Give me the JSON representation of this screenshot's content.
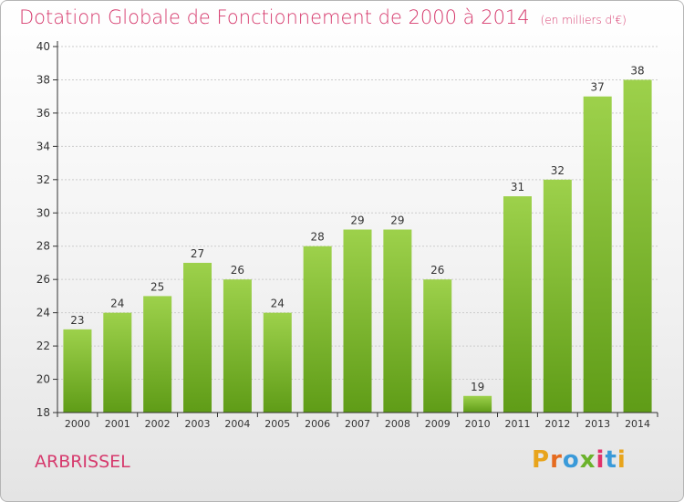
{
  "header": {
    "title": "Dotation Globale de Fonctionnement de 2000 à 2014",
    "subtitle": "(en milliers d'€)"
  },
  "footer": {
    "place": "ARBRISSEL",
    "logo": "Proxiti"
  },
  "colors": {
    "title": "#d63a6d",
    "bar_light": "#9dd14b",
    "bar_dark": "#5f9c17",
    "axis": "#333333",
    "grid": "#cccccc"
  },
  "chart_data": {
    "type": "bar",
    "categories": [
      "2000",
      "2001",
      "2002",
      "2003",
      "2004",
      "2005",
      "2006",
      "2007",
      "2008",
      "2009",
      "2010",
      "2011",
      "2012",
      "2013",
      "2014"
    ],
    "values": [
      23,
      24,
      25,
      27,
      26,
      24,
      28,
      29,
      29,
      26,
      19,
      31,
      32,
      37,
      38
    ],
    "title": "Dotation Globale de Fonctionnement de 2000 à 2014",
    "subtitle": "(en milliers d'€)",
    "ylim": [
      18,
      40
    ],
    "yticks": [
      18,
      20,
      22,
      24,
      26,
      28,
      30,
      32,
      34,
      36,
      38,
      40
    ],
    "grid": true
  }
}
